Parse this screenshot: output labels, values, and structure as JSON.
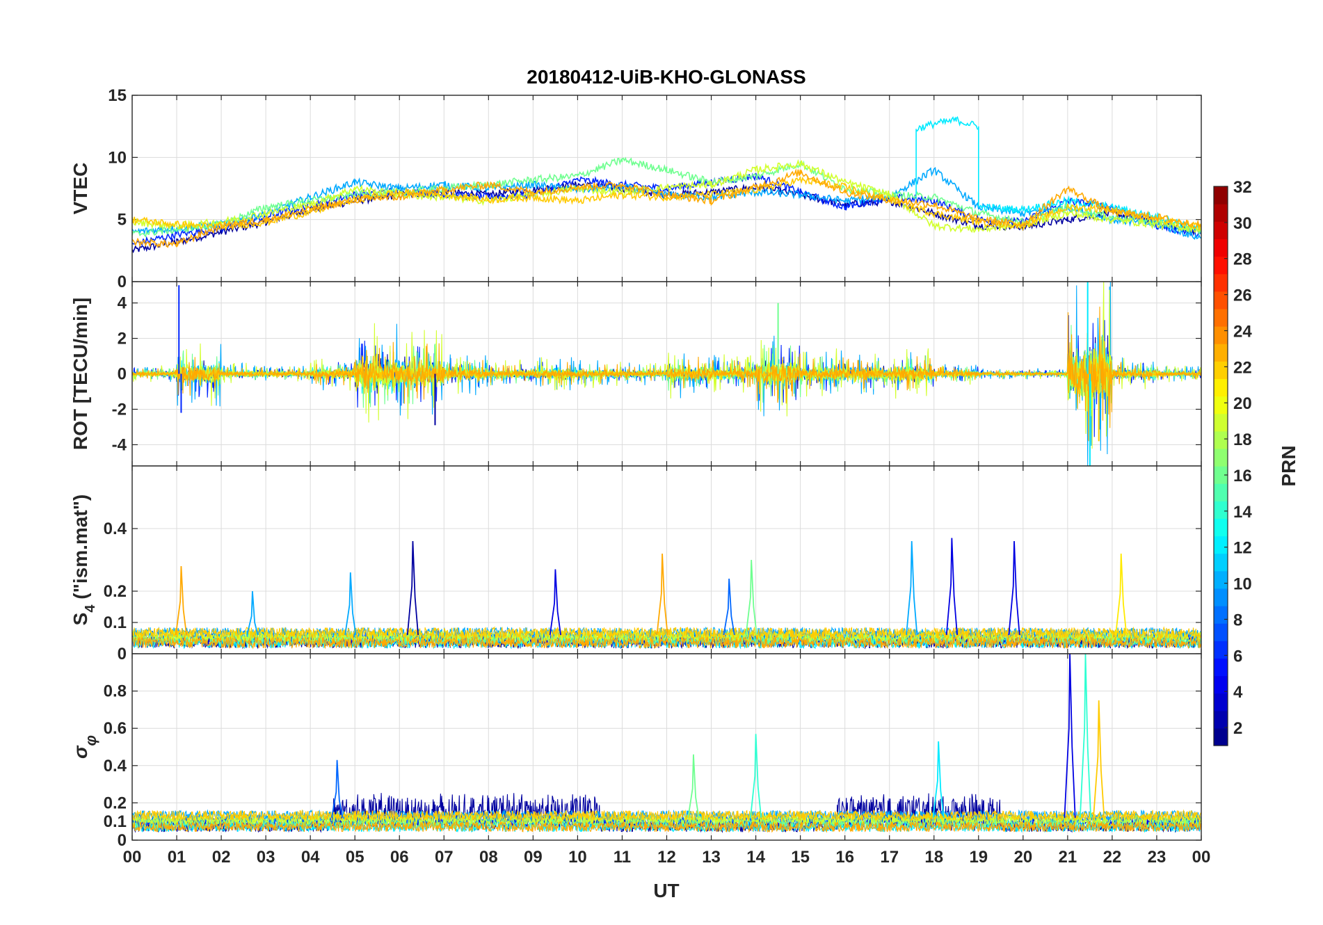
{
  "chart_data": {
    "type": "line",
    "title": "20180412-UiB-KHO-GLONASS",
    "xlabel": "UT",
    "x_tick_labels": [
      "00",
      "01",
      "02",
      "03",
      "04",
      "05",
      "06",
      "07",
      "08",
      "09",
      "10",
      "11",
      "12",
      "13",
      "14",
      "15",
      "16",
      "17",
      "18",
      "19",
      "20",
      "21",
      "22",
      "23",
      "00"
    ],
    "xlim_hours": [
      0,
      24
    ],
    "grid": true,
    "colorbar": {
      "label": "PRN",
      "range": [
        1,
        32
      ],
      "tick_labels": [
        "2",
        "4",
        "6",
        "8",
        "10",
        "12",
        "14",
        "16",
        "18",
        "20",
        "22",
        "24",
        "26",
        "28",
        "30",
        "32"
      ],
      "colormap": "jet",
      "placement": "right"
    },
    "panels": [
      {
        "name": "vtec",
        "ylabel": "VTEC",
        "ylim": [
          0,
          15
        ],
        "y_tick_labels": [
          "0",
          "5",
          "10",
          "15"
        ],
        "series": [
          {
            "prn": 2,
            "x": [
              0,
              1,
              2,
              3,
              4,
              5,
              6,
              7,
              8,
              9,
              10,
              11,
              12,
              13,
              14,
              15,
              16,
              17,
              18,
              19,
              20,
              21,
              22,
              23,
              24
            ],
            "y": [
              2.5,
              3.2,
              4.0,
              4.8,
              5.8,
              6.5,
              7.0,
              7.2,
              7.0,
              7.4,
              7.8,
              7.5,
              7.0,
              7.2,
              7.6,
              7.0,
              6.2,
              6.5,
              5.5,
              4.5,
              4.4,
              5.0,
              5.5,
              4.8,
              4.0
            ]
          },
          {
            "prn": 6,
            "x": [
              0,
              1,
              2,
              3,
              4,
              5,
              6,
              7,
              8,
              9,
              10,
              11,
              12,
              13,
              14,
              15,
              16,
              17,
              18,
              19,
              20,
              21,
              22,
              23,
              24
            ],
            "y": [
              3.0,
              3.8,
              4.3,
              5.2,
              6.2,
              7.0,
              7.3,
              7.0,
              6.8,
              7.0,
              8.2,
              7.8,
              7.5,
              8.0,
              8.5,
              7.2,
              6.0,
              6.8,
              6.5,
              5.0,
              4.8,
              6.5,
              6.0,
              4.5,
              3.8
            ]
          },
          {
            "prn": 10,
            "x": [
              0,
              1,
              2,
              3,
              4,
              5,
              6,
              7,
              8,
              9,
              10,
              11,
              12,
              13,
              14,
              15,
              16,
              17,
              18,
              19,
              20,
              21,
              22,
              23,
              24
            ],
            "y": [
              4.0,
              4.3,
              4.6,
              5.5,
              6.8,
              8.0,
              7.5,
              7.8,
              7.5,
              7.8,
              7.4,
              7.6,
              7.0,
              6.8,
              7.2,
              7.0,
              6.5,
              6.8,
              9.0,
              6.0,
              5.5,
              6.0,
              5.0,
              4.6,
              3.5
            ]
          },
          {
            "prn": 12,
            "x": [
              17.6,
              17.6,
              18.0,
              18.5,
              19.0,
              19.0,
              20.0,
              21.0,
              22.0,
              23.0,
              24.0
            ],
            "y": [
              6.5,
              12.3,
              12.7,
              13.0,
              12.5,
              6.0,
              5.8,
              6.5,
              6.0,
              5.2,
              4.2
            ]
          },
          {
            "prn": 16,
            "x": [
              0,
              1,
              2,
              3,
              4,
              5,
              6,
              7,
              8,
              9,
              10,
              11,
              12,
              13,
              14,
              15,
              16,
              17,
              18,
              19,
              20,
              21,
              22,
              23,
              24
            ],
            "y": [
              3.8,
              4.2,
              4.6,
              6.0,
              6.5,
              7.0,
              7.2,
              7.5,
              7.8,
              8.2,
              8.5,
              9.8,
              9.0,
              8.0,
              8.5,
              9.5,
              7.5,
              7.0,
              6.8,
              5.5,
              4.8,
              6.0,
              5.2,
              4.8,
              4.0
            ]
          },
          {
            "prn": 19,
            "x": [
              0,
              1,
              2,
              3,
              4,
              5,
              6,
              7,
              8,
              9,
              10,
              11,
              12,
              13,
              14,
              15,
              16,
              17,
              18,
              19,
              20,
              21,
              22,
              23,
              24
            ],
            "y": [
              4.8,
              4.5,
              4.8,
              5.5,
              6.2,
              7.5,
              7.0,
              6.8,
              6.5,
              7.0,
              7.5,
              7.2,
              7.6,
              7.8,
              9.0,
              9.5,
              8.0,
              7.0,
              4.5,
              4.2,
              4.6,
              5.5,
              5.0,
              4.6,
              4.2
            ]
          },
          {
            "prn": 22,
            "x": [
              0,
              1,
              2,
              3,
              4,
              5,
              6,
              7,
              8,
              9,
              10,
              11,
              12,
              13,
              14,
              15,
              16,
              17,
              18,
              19,
              20,
              21,
              22,
              23,
              24
            ],
            "y": [
              5.0,
              4.6,
              4.4,
              4.8,
              5.6,
              6.6,
              7.2,
              7.0,
              6.6,
              6.8,
              6.5,
              7.0,
              6.8,
              7.0,
              7.4,
              8.2,
              7.6,
              6.6,
              5.5,
              4.8,
              4.5,
              6.0,
              5.8,
              5.0,
              4.4
            ]
          },
          {
            "prn": 23,
            "x": [
              0,
              1,
              2,
              3,
              4,
              5,
              6,
              7,
              8,
              9,
              10,
              11,
              12,
              13,
              14,
              15,
              16,
              17,
              18,
              19,
              20,
              21,
              22,
              23,
              24
            ],
            "y": [
              3.2,
              3.0,
              4.5,
              5.0,
              5.8,
              6.6,
              6.8,
              7.4,
              7.8,
              7.2,
              7.6,
              7.8,
              7.0,
              6.5,
              7.6,
              8.8,
              7.2,
              6.6,
              6.2,
              5.0,
              4.6,
              7.5,
              5.6,
              5.2,
              4.5
            ]
          }
        ]
      },
      {
        "name": "rot",
        "ylabel": "ROT [TECU/min]",
        "ylim": [
          -5.2,
          5.2
        ],
        "y_tick_labels": [
          "-4",
          "-2",
          "0",
          "2",
          "4"
        ],
        "noise_amplitude_by_hour": [
          0.3,
          1.2,
          0.4,
          0.3,
          0.6,
          1.8,
          1.6,
          0.8,
          0.5,
          0.6,
          0.5,
          0.4,
          0.9,
          0.7,
          1.5,
          0.9,
          0.8,
          0.9,
          0.4,
          0.2,
          0.2,
          3.5,
          0.6,
          0.3,
          0.3
        ],
        "spikes": [
          {
            "x": 1.05,
            "y": 5.0,
            "prn": 6
          },
          {
            "x": 1.1,
            "y": -2.2,
            "prn": 6
          },
          {
            "x": 6.8,
            "y": -2.9,
            "prn": 2
          },
          {
            "x": 14.5,
            "y": 4.0,
            "prn": 16
          },
          {
            "x": 21.45,
            "y": 5.2,
            "prn": 12
          },
          {
            "x": 21.5,
            "y": -5.2,
            "prn": 12
          },
          {
            "x": 21.7,
            "y": -3.8,
            "prn": 22
          }
        ]
      },
      {
        "name": "s4",
        "ylabel": "S_4 (\"ism.mat\")",
        "ylim": [
          0,
          0.6
        ],
        "y_tick_labels": [
          "0",
          "0.1",
          "0.2",
          "0.4"
        ],
        "baseline": 0.06,
        "peaks": [
          {
            "x": 1.1,
            "y": 0.28,
            "prn": 23
          },
          {
            "x": 2.7,
            "y": 0.2,
            "prn": 10
          },
          {
            "x": 4.9,
            "y": 0.26,
            "prn": 10
          },
          {
            "x": 6.3,
            "y": 0.36,
            "prn": 2
          },
          {
            "x": 9.5,
            "y": 0.27,
            "prn": 4
          },
          {
            "x": 11.9,
            "y": 0.32,
            "prn": 23
          },
          {
            "x": 13.4,
            "y": 0.24,
            "prn": 8
          },
          {
            "x": 13.9,
            "y": 0.3,
            "prn": 16
          },
          {
            "x": 17.5,
            "y": 0.36,
            "prn": 10
          },
          {
            "x": 18.4,
            "y": 0.37,
            "prn": 4
          },
          {
            "x": 19.8,
            "y": 0.36,
            "prn": 4
          },
          {
            "x": 22.2,
            "y": 0.32,
            "prn": 21
          }
        ]
      },
      {
        "name": "sigma_phi",
        "ylabel": "σ_φ",
        "ylim": [
          0,
          1.0
        ],
        "y_tick_labels": [
          "0",
          "0.1",
          "0.2",
          "0.4",
          "0.6",
          "0.8"
        ],
        "baseline": 0.12,
        "peaks": [
          {
            "x": 4.6,
            "y": 0.43,
            "prn": 8
          },
          {
            "x": 12.6,
            "y": 0.46,
            "prn": 16
          },
          {
            "x": 14.0,
            "y": 0.57,
            "prn": 14
          },
          {
            "x": 18.1,
            "y": 0.53,
            "prn": 12
          },
          {
            "x": 21.05,
            "y": 1.0,
            "prn": 4
          },
          {
            "x": 21.4,
            "y": 1.0,
            "prn": 14
          },
          {
            "x": 21.7,
            "y": 0.75,
            "prn": 22
          }
        ]
      }
    ]
  }
}
